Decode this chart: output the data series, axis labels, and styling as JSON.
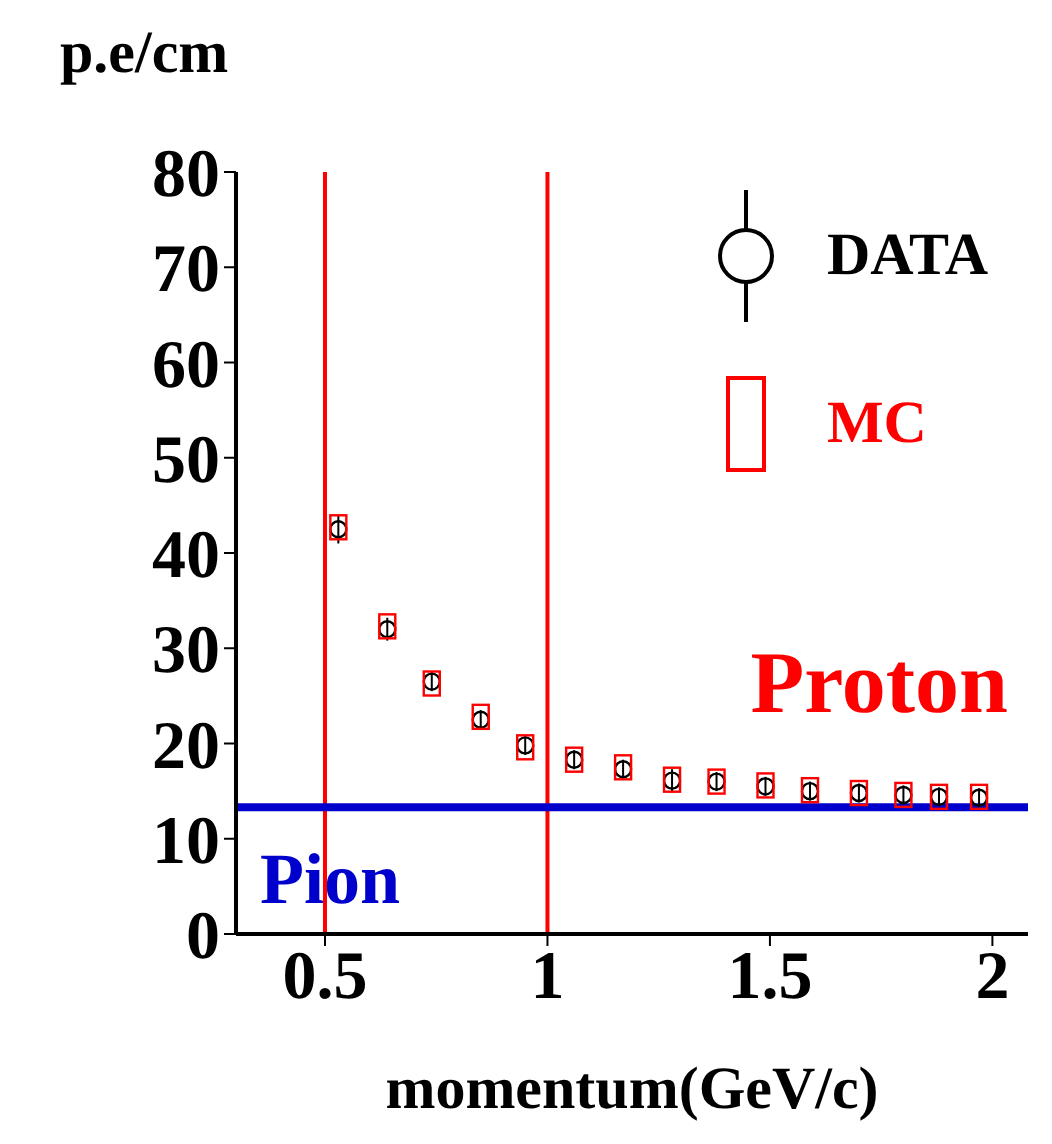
{
  "chart_data": {
    "type": "scatter",
    "xlabel": "momentum(GeV/c)",
    "ylabel": "p.e/cm",
    "x": [
      0.53,
      0.64,
      0.74,
      0.85,
      0.95,
      1.06,
      1.17,
      1.28,
      1.38,
      1.49,
      1.59,
      1.7,
      1.8,
      1.88,
      1.97
    ],
    "series": [
      {
        "name": "DATA",
        "color": "#000000",
        "marker": "circle",
        "values": [
          42.5,
          32,
          26.5,
          22.5,
          19.8,
          18.3,
          17.3,
          16.1,
          16,
          15.5,
          15,
          14.8,
          14.6,
          14.4,
          14.3
        ],
        "errors": [
          1.5,
          1.2,
          1,
          1,
          1,
          1,
          1,
          1.2,
          1,
          1,
          1,
          1,
          1,
          1,
          1
        ]
      },
      {
        "name": "MC",
        "color": "#ff0000",
        "marker": "square",
        "values": [
          42.7,
          32.3,
          26.3,
          22.8,
          19.6,
          18.3,
          17.5,
          16.2,
          16,
          15.6,
          15.1,
          14.8,
          14.6,
          14.4,
          14.4
        ]
      }
    ],
    "xlim": [
      0.3,
      2.08
    ],
    "xticks": [
      0.5,
      1,
      1.5,
      2
    ],
    "ylim": [
      0,
      80
    ],
    "yticks": [
      0,
      10,
      20,
      30,
      40,
      50,
      60,
      70,
      80
    ],
    "grid": false,
    "legend": "top right",
    "ref_lines": [
      {
        "axis": "x",
        "value": 0.5,
        "label": null,
        "color": "#ff0000"
      },
      {
        "axis": "x",
        "value": 1,
        "label": null,
        "color": "#ff0000"
      },
      {
        "axis": "y",
        "value": 13.3,
        "label": "Pion",
        "color": "#0000cc"
      }
    ],
    "annotations": [
      "Proton"
    ]
  }
}
